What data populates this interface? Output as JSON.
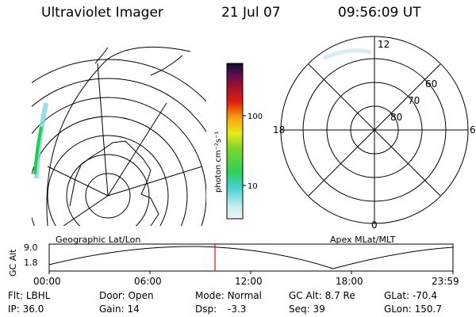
{
  "header": {
    "title": "Ultraviolet Imager",
    "date": "21 Jul 07",
    "time": "09:56:09 UT"
  },
  "colorbar": {
    "label": "photon cm⁻²s⁻¹",
    "ticks": [
      "100",
      "10"
    ]
  },
  "polar_plot": {
    "mlt_labels": [
      "12",
      "18",
      "6",
      "0"
    ],
    "lat_labels": [
      "60",
      "70",
      "80"
    ]
  },
  "timeline": {
    "left_title": "Geographic Lat/Lon",
    "right_title": "Apex MLat/MLT",
    "axis_label": "GC Alt",
    "y_ticks": [
      "9.0",
      "1.8"
    ],
    "x_ticks": [
      "00:00",
      "06:00",
      "12:00",
      "18:00",
      "23:59"
    ],
    "current_marker_time": "09:56"
  },
  "stats": {
    "flt_label": "Flt:",
    "flt_value": "LBHL",
    "ip_label": "IP:",
    "ip_value": "36.0",
    "door_label": "Door:",
    "door_value": "Open",
    "gain_label": "Gain:",
    "gain_value": "14",
    "mode_label": "Mode:",
    "mode_value": "Normal",
    "dsp_label": "Dsp:",
    "dsp_value": "-3.3",
    "gcalt_label": "GC Alt:",
    "gcalt_value": "8.7 Re",
    "seq_label": "Seq:",
    "seq_value": "39",
    "glat_label": "GLat:",
    "glat_value": "-70.4",
    "glon_label": "GLon:",
    "glon_value": "150.7"
  },
  "colors": {
    "marker": "#ff0000",
    "aurora_green": "#22cc55",
    "aurora_cyan": "#7fd8e0"
  }
}
